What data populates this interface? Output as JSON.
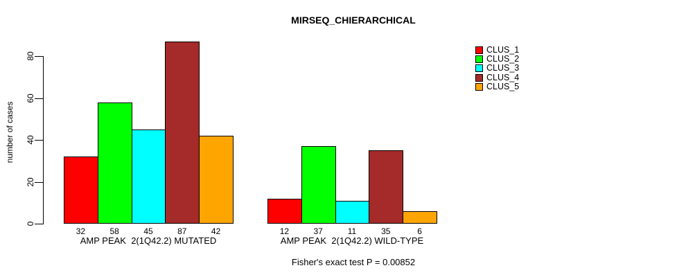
{
  "title": "MIRSEQ_CHIERARCHICAL",
  "y_axis": {
    "label": "number of cases",
    "ticks": [
      0,
      20,
      40,
      60,
      80
    ]
  },
  "legend": {
    "items": [
      {
        "label": "CLUS_1",
        "color": "#FF0000"
      },
      {
        "label": "CLUS_2",
        "color": "#00FF00"
      },
      {
        "label": "CLUS_3",
        "color": "#00FFFF"
      },
      {
        "label": "CLUS_4",
        "color": "#A52A2A"
      },
      {
        "label": "CLUS_5",
        "color": "#FFA500"
      }
    ]
  },
  "footnote": "Fisher's exact test P = 0.00852",
  "chart_data": {
    "type": "bar",
    "title": "MIRSEQ_CHIERARCHICAL",
    "xlabel": "",
    "ylabel": "number of cases",
    "ylim": [
      0,
      87
    ],
    "y_ticks": [
      0,
      20,
      40,
      60,
      80
    ],
    "grid": false,
    "legend_position": "right",
    "bar_value_labels_shown": true,
    "categories": [
      "AMP PEAK  2(1Q42.2) MUTATED",
      "AMP PEAK  2(1Q42.2) WILD-TYPE"
    ],
    "series": [
      {
        "name": "CLUS_1",
        "color": "#FF0000",
        "values": [
          32,
          12
        ]
      },
      {
        "name": "CLUS_2",
        "color": "#00FF00",
        "values": [
          58,
          37
        ]
      },
      {
        "name": "CLUS_3",
        "color": "#00FFFF",
        "values": [
          45,
          11
        ]
      },
      {
        "name": "CLUS_4",
        "color": "#A52A2A",
        "values": [
          87,
          35
        ]
      },
      {
        "name": "CLUS_5",
        "color": "#FFA500",
        "values": [
          42,
          6
        ]
      }
    ]
  }
}
